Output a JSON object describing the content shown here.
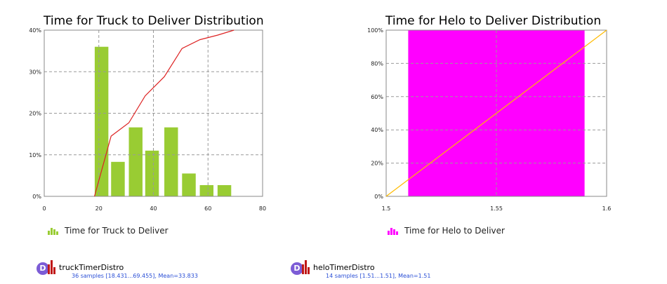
{
  "charts": [
    {
      "title": "Time for Truck to Deliver Distribution",
      "legend_label": "Time for Truck to Deliver",
      "legend_color": "#99cc33",
      "dataset_name": "truckTimerDistro",
      "dataset_stats": "36 samples [18.431...69.455], Mean=33.833"
    },
    {
      "title": "Time for Helo to Deliver Distribution",
      "legend_label": "Time for Helo to Deliver",
      "legend_color": "#ff00ff",
      "dataset_name": "heloTimerDistro",
      "dataset_stats": "14 samples [1.51...1.51], Mean=1.51"
    }
  ],
  "dataset_icon_letter": "D",
  "chart_data": [
    {
      "type": "bar",
      "title": "Time for Truck to Deliver Distribution",
      "xlim": [
        0,
        80
      ],
      "ylim": [
        0,
        40
      ],
      "x_ticks": [
        "0",
        "20",
        "40",
        "60",
        "80"
      ],
      "y_ticks": [
        "0%",
        "10%",
        "20%",
        "30%",
        "40%"
      ],
      "bar_color": "#99cc33",
      "line_color": "#dd2222",
      "grid": true,
      "legend": "bottom",
      "series": [
        {
          "name": "Time for Truck to Deliver",
          "bars": [
            {
              "x0": 18.5,
              "x1": 23.5,
              "value": 36
            },
            {
              "x0": 24.5,
              "x1": 29.5,
              "value": 8.3
            },
            {
              "x0": 31.0,
              "x1": 36.0,
              "value": 16.6
            },
            {
              "x0": 37.0,
              "x1": 42.0,
              "value": 11
            },
            {
              "x0": 44.0,
              "x1": 49.0,
              "value": 16.6
            },
            {
              "x0": 50.5,
              "x1": 55.5,
              "value": 5.5
            },
            {
              "x0": 57.0,
              "x1": 62.0,
              "value": 2.7
            },
            {
              "x0": 63.5,
              "x1": 68.5,
              "value": 2.7
            }
          ],
          "cumulative": [
            [
              18.4,
              0
            ],
            [
              24.5,
              14.5
            ],
            [
              31,
              17.7
            ],
            [
              37,
              24.2
            ],
            [
              44,
              28.8
            ],
            [
              50.5,
              35.6
            ],
            [
              57,
              37.7
            ],
            [
              63.5,
              38.8
            ],
            [
              69.5,
              40
            ]
          ]
        }
      ]
    },
    {
      "type": "bar",
      "title": "Time for Helo to Deliver Distribution",
      "xlim": [
        1.5,
        1.6
      ],
      "ylim": [
        0,
        100
      ],
      "x_ticks": [
        "1.5",
        "1.55",
        "1.6"
      ],
      "y_ticks": [
        "0%",
        "20%",
        "40%",
        "60%",
        "80%",
        "100%"
      ],
      "bar_color": "#ff00ff",
      "line_color": "#ffbb00",
      "grid": true,
      "legend": "bottom",
      "series": [
        {
          "name": "Time for Helo to Deliver",
          "bars": [
            {
              "x0": 1.51,
              "x1": 1.59,
              "value": 100
            }
          ],
          "cumulative": [
            [
              1.5,
              0
            ],
            [
              1.6,
              100
            ]
          ]
        }
      ]
    }
  ]
}
